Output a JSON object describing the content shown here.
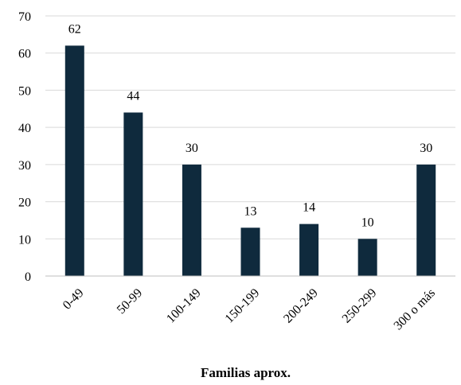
{
  "chart_data": {
    "type": "bar",
    "categories": [
      "0-49",
      "50-99",
      "100-149",
      "150-199",
      "200-249",
      "250-299",
      "300 o más"
    ],
    "values": [
      62,
      44,
      30,
      13,
      14,
      10,
      30
    ],
    "xlabel": "Familias aprox.",
    "ylabel": "",
    "ylim": [
      0,
      70
    ],
    "yticks": [
      0,
      10,
      20,
      30,
      40,
      50,
      60,
      70
    ],
    "grid": true,
    "legend": "none",
    "bar_color": "#0f2a3d"
  }
}
